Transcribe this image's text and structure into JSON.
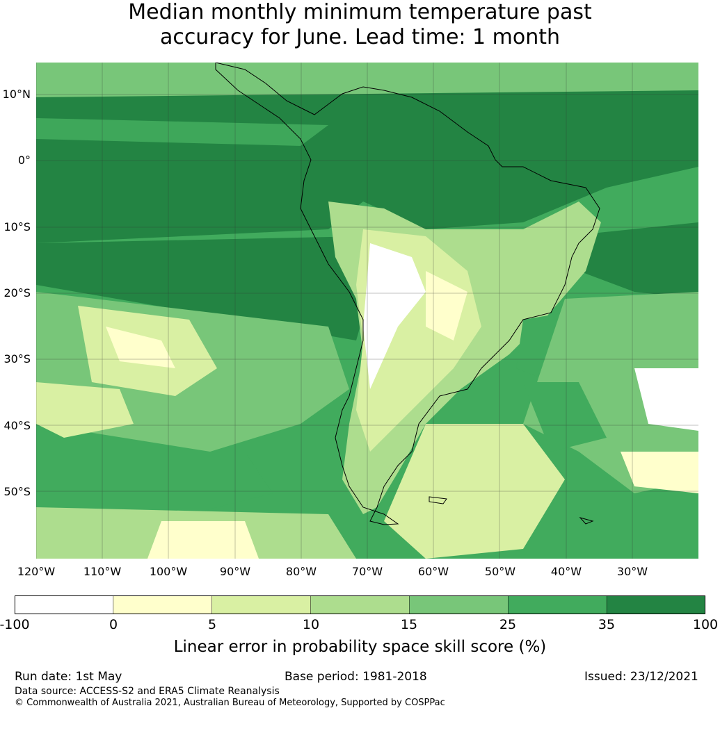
{
  "title_line1": "Median monthly minimum temperature past",
  "title_line2": "accuracy for June. Lead time: 1 month",
  "lat_labels": [
    "10°N",
    "0°",
    "10°S",
    "20°S",
    "30°S",
    "40°S",
    "50°S"
  ],
  "lon_labels": [
    "120°W",
    "110°W",
    "100°W",
    "90°W",
    "80°W",
    "70°W",
    "60°W",
    "50°W",
    "40°W",
    "30°W"
  ],
  "colorbar": {
    "ticks": [
      "-100",
      "0",
      "5",
      "10",
      "15",
      "25",
      "35",
      "100"
    ],
    "colors": [
      "#ffffff",
      "#ffffcc",
      "#d9f0a3",
      "#addd8e",
      "#78c679",
      "#41ab5d",
      "#238443"
    ],
    "label": "Linear error in probability space skill score (%)"
  },
  "footer": {
    "run_date": "Run date: 1st May",
    "base_period": "Base period: 1981-2018",
    "issued": "Issued: 23/12/2021",
    "data_source": "Data source: ACCESS-S2 and ERA5 Climate Reanalysis",
    "copyright": "© Commonwealth of Australia 2021, Australian Bureau of Meteorology, Supported by COSPPac"
  }
}
